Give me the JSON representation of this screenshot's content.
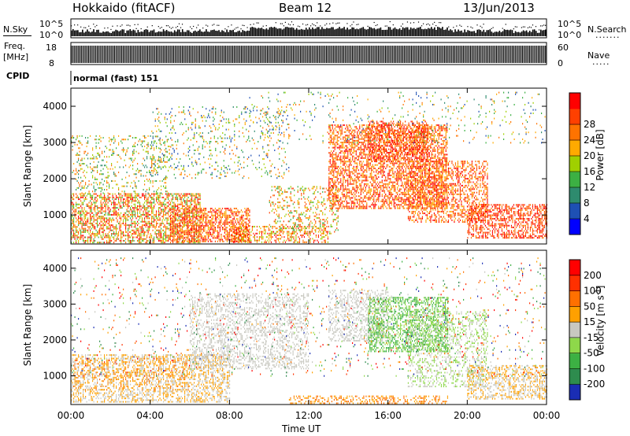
{
  "header": {
    "station": "Hokkaido (fitACF)",
    "beam": "Beam 12",
    "date": "13/Jun/2013"
  },
  "strip_labels": {
    "nsky": "N.Sky",
    "nsky_ticks": [
      "10^5",
      "10^0"
    ],
    "nsearch": "N.Search",
    "nsearch_ticks": [
      "10^5",
      "10^0"
    ],
    "freq": "Freq.",
    "freq_unit": "[MHz]",
    "freq_ticks": [
      "18",
      "8"
    ],
    "nave": "Nave",
    "nave_ticks": [
      "60",
      "0"
    ],
    "cpid": "CPID",
    "cpid_value": "normal (fast) 151"
  },
  "chart_data": [
    {
      "type": "heatmap",
      "name": "power",
      "ylabel": "Slant Range [km]",
      "yticks": [
        "1000",
        "2000",
        "3000",
        "4000"
      ],
      "ylim": [
        200,
        4500
      ],
      "xlim": [
        0,
        24
      ],
      "colorbar": {
        "label": "Power [dB]",
        "ticks": [
          "4",
          "8",
          "12",
          "16",
          "20",
          "24",
          "28"
        ],
        "range": [
          0,
          30
        ],
        "colors": [
          "#0000ff",
          "#1e50b4",
          "#2e8b6e",
          "#3cb043",
          "#a0d000",
          "#ffaa00",
          "#ff7300",
          "#ff4000",
          "#ff0000"
        ]
      }
    },
    {
      "type": "heatmap",
      "name": "velocity",
      "ylabel": "Slant Range [km]",
      "yticks": [
        "1000",
        "2000",
        "3000",
        "4000"
      ],
      "ylim": [
        200,
        4500
      ],
      "xlim": [
        0,
        24
      ],
      "xlabel": "Time UT",
      "xticks": [
        "00:00",
        "04:00",
        "08:00",
        "12:00",
        "16:00",
        "20:00",
        "00:00"
      ],
      "colorbar": {
        "label_main": "Velocity [m s",
        "label_sup": "-1",
        "label_end": "]",
        "ticks": [
          "200",
          "100",
          "50",
          "15",
          "-15",
          "-50",
          "-100",
          "-200"
        ],
        "colors": [
          "#1a2db4",
          "#2e8c4e",
          "#3cb043",
          "#8ed84a",
          "#c8c8c0",
          "#ffa000",
          "#ff7000",
          "#ff3000",
          "#ff0000"
        ]
      }
    }
  ]
}
